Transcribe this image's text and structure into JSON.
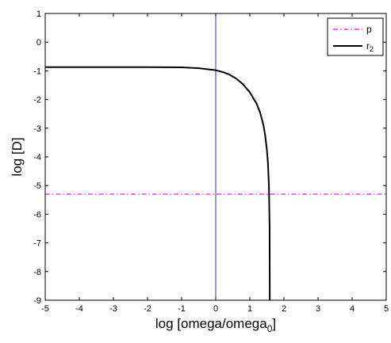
{
  "chart_data": {
    "type": "line",
    "xlabel": "log [omega/omega",
    "xlabel_sub": "0",
    "xlabel_close": "]",
    "ylabel": "log [D]",
    "xlim": [
      -5,
      5
    ],
    "ylim": [
      -9,
      1
    ],
    "xticks": [
      -5,
      -4,
      -3,
      -2,
      -1,
      0,
      1,
      2,
      3,
      4,
      5
    ],
    "yticks": [
      1,
      0,
      -1,
      -2,
      -3,
      -4,
      -5,
      -6,
      -7,
      -8,
      -9
    ],
    "grid": false,
    "legend_position": "top-right",
    "vline_x": 0,
    "series": [
      {
        "name": "p",
        "style": "dash-dot",
        "color": "#ff00ff",
        "x": [
          -5,
          5
        ],
        "y": [
          -5.3,
          -5.3
        ]
      },
      {
        "name": "r",
        "name_sub": "2",
        "style": "solid",
        "color": "#000000",
        "x": [
          -5,
          -4,
          -3,
          -2,
          -1,
          -0.5,
          0,
          0.2,
          0.4,
          0.6,
          0.8,
          1.0,
          1.2,
          1.3,
          1.4,
          1.45,
          1.5,
          1.53,
          1.56,
          1.58,
          1.585
        ],
        "y": [
          -0.87,
          -0.87,
          -0.87,
          -0.87,
          -0.88,
          -0.91,
          -0.98,
          -1.04,
          -1.13,
          -1.27,
          -1.47,
          -1.75,
          -2.15,
          -2.45,
          -2.9,
          -3.25,
          -3.75,
          -4.2,
          -5.0,
          -6.5,
          -9.0
        ]
      }
    ]
  }
}
